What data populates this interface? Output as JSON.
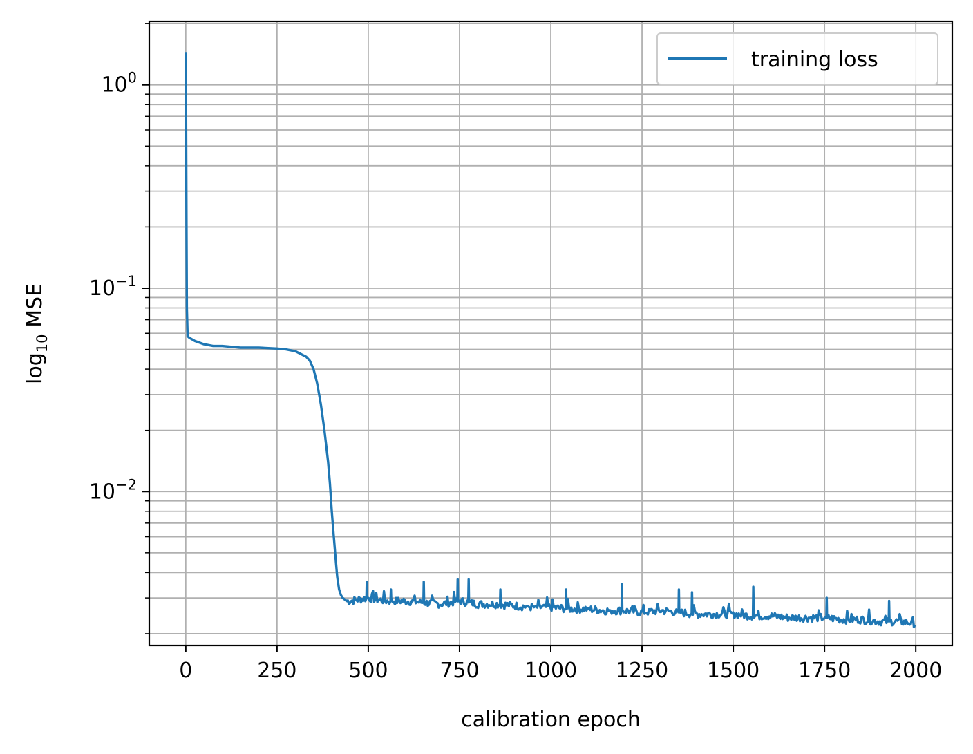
{
  "chart_data": {
    "type": "line",
    "title": "",
    "xlabel": "calibration epoch",
    "ylabel": {
      "prefix": "log",
      "subscript": "10",
      "suffix": " MSE"
    },
    "xscale": "linear",
    "yscale": "log",
    "xlim": [
      -100,
      2100
    ],
    "ylim": [
      0.00175,
      2.05
    ],
    "xticks": [
      0,
      250,
      500,
      750,
      1000,
      1250,
      1500,
      1750,
      2000
    ],
    "xtick_labels": [
      "0",
      "250",
      "500",
      "750",
      "1000",
      "1250",
      "1500",
      "1750",
      "2000"
    ],
    "yticks": [
      {
        "value": 1,
        "base": "10",
        "exponent": "0"
      },
      {
        "value": 0.1,
        "base": "10",
        "exponent": "−1"
      },
      {
        "value": 0.01,
        "base": "10",
        "exponent": "−2"
      }
    ],
    "grid": true,
    "grid_minor_y": true,
    "legend_position": "top-right",
    "series": [
      {
        "name": "training loss",
        "color": "#1f77b4",
        "x": [
          0,
          1,
          2,
          3,
          5,
          10,
          25,
          50,
          75,
          100,
          150,
          200,
          250,
          275,
          300,
          310,
          320,
          330,
          340,
          350,
          360,
          370,
          380,
          390,
          395,
          400,
          405,
          410,
          415,
          420,
          425,
          430,
          440,
          450,
          475,
          500,
          525,
          550,
          600,
          650,
          700,
          750,
          800,
          850,
          900,
          950,
          1000,
          1050,
          1100,
          1150,
          1200,
          1250,
          1300,
          1350,
          1400,
          1450,
          1500,
          1550,
          1600,
          1650,
          1700,
          1750,
          1800,
          1850,
          1900,
          1950,
          2000
        ],
        "y": [
          1.45,
          0.7,
          0.2,
          0.08,
          0.058,
          0.057,
          0.055,
          0.053,
          0.052,
          0.052,
          0.051,
          0.051,
          0.0505,
          0.05,
          0.049,
          0.048,
          0.047,
          0.046,
          0.044,
          0.04,
          0.034,
          0.027,
          0.02,
          0.014,
          0.011,
          0.008,
          0.0062,
          0.0048,
          0.0038,
          0.0033,
          0.0031,
          0.003,
          0.0029,
          0.0029,
          0.00295,
          0.003,
          0.00295,
          0.0029,
          0.0029,
          0.00285,
          0.0028,
          0.0029,
          0.0028,
          0.0028,
          0.00275,
          0.0027,
          0.0027,
          0.00265,
          0.00265,
          0.0026,
          0.0026,
          0.00255,
          0.0026,
          0.00255,
          0.0025,
          0.0025,
          0.0025,
          0.00245,
          0.00245,
          0.0024,
          0.0024,
          0.0024,
          0.00235,
          0.00235,
          0.0023,
          0.0023,
          0.00225
        ],
        "spikes": [
          {
            "x": 495,
            "y": 0.0036
          },
          {
            "x": 560,
            "y": 0.0033
          },
          {
            "x": 650,
            "y": 0.0036
          },
          {
            "x": 745,
            "y": 0.0037
          },
          {
            "x": 775,
            "y": 0.0037
          },
          {
            "x": 860,
            "y": 0.0033
          },
          {
            "x": 1040,
            "y": 0.0033
          },
          {
            "x": 1195,
            "y": 0.0035
          },
          {
            "x": 1350,
            "y": 0.0033
          },
          {
            "x": 1385,
            "y": 0.0032
          },
          {
            "x": 1555,
            "y": 0.0034
          },
          {
            "x": 1755,
            "y": 0.003
          },
          {
            "x": 1925,
            "y": 0.0029
          }
        ]
      }
    ]
  }
}
